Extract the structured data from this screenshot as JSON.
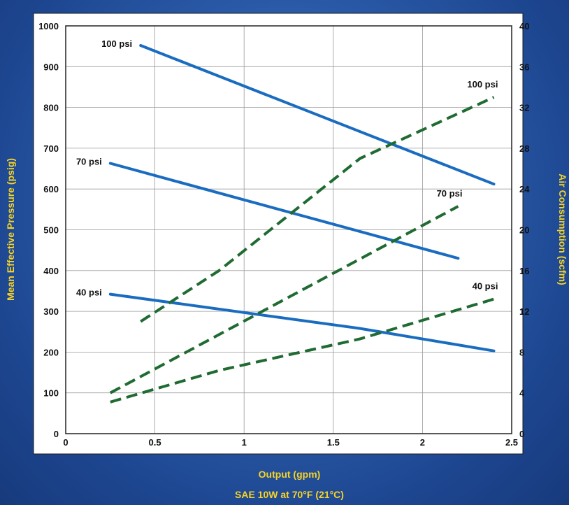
{
  "chart_data": {
    "type": "line",
    "title": "",
    "xlabel": "Output (gpm)",
    "ylabel_left": "Mean Effective Pressure (psig)",
    "ylabel_right": "Air Consumption (scfm)",
    "footer": "SAE 10W at 70°F (21°C)",
    "xlim": [
      0,
      2.5
    ],
    "ylim_left": [
      0,
      1000
    ],
    "ylim_right": [
      0,
      40
    ],
    "x_ticks": [
      "0",
      "0.5",
      "1",
      "1.5",
      "2",
      "2.5"
    ],
    "y_left_ticks": [
      "0",
      "100",
      "200",
      "300",
      "400",
      "500",
      "600",
      "700",
      "800",
      "900",
      "1000"
    ],
    "y_right_ticks": [
      "0",
      "4",
      "8",
      "12",
      "16",
      "20",
      "24",
      "28",
      "32",
      "36",
      "40"
    ],
    "grid": true,
    "colors": {
      "pressure": "#1a6cc0",
      "air": "#1f6b32",
      "axis_text": "#f5d327"
    },
    "series": [
      {
        "name": "100 psi",
        "axis": "left",
        "style": "solid",
        "x": [
          0.42,
          2.4
        ],
        "y": [
          952,
          612
        ]
      },
      {
        "name": "70 psi",
        "axis": "left",
        "style": "solid",
        "x": [
          0.25,
          2.2
        ],
        "y": [
          663,
          430
        ]
      },
      {
        "name": "40 psi",
        "axis": "left",
        "style": "solid",
        "x": [
          0.25,
          1.65,
          2.4
        ],
        "y": [
          342,
          258,
          203
        ]
      },
      {
        "name": "100 psi",
        "axis": "right",
        "style": "dashed",
        "x": [
          0.42,
          0.86,
          1.65,
          2.4
        ],
        "y": [
          11,
          16,
          27,
          33
        ]
      },
      {
        "name": "70 psi",
        "axis": "right",
        "style": "dashed",
        "x": [
          0.25,
          2.2
        ],
        "y": [
          4,
          22.3
        ]
      },
      {
        "name": "40 psi",
        "axis": "right",
        "style": "dashed",
        "x": [
          0.25,
          0.86,
          1.65,
          2.4
        ],
        "y": [
          3.1,
          6.2,
          9.3,
          13.2
        ]
      }
    ]
  }
}
